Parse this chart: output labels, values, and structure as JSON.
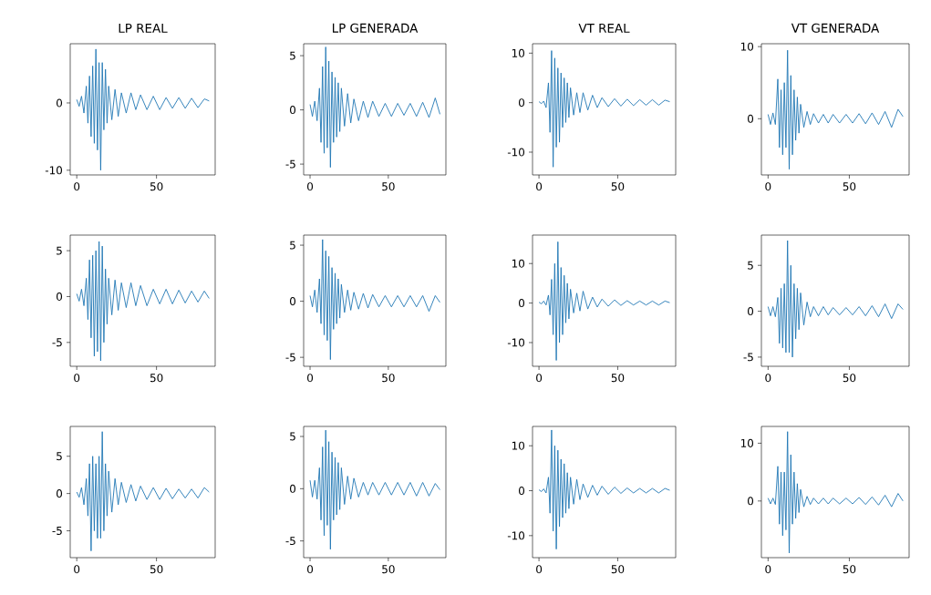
{
  "chart_data": [
    {
      "type": "line",
      "title": "LP REAL",
      "color": "#1f77b4",
      "xlim": [
        -4.1,
        86.8
      ],
      "ylim": [
        -10.7,
        8.8
      ],
      "xticks": [
        0,
        50
      ],
      "yticks": [
        -10,
        0
      ],
      "x": [
        0,
        1.5,
        3,
        4.5,
        6,
        7,
        8,
        9,
        10,
        11,
        12,
        13,
        14,
        15,
        16,
        17,
        18,
        19,
        20,
        22,
        24,
        26,
        28,
        31,
        34,
        37,
        40,
        44,
        48,
        52,
        56,
        60,
        64,
        68,
        72,
        76,
        80,
        83
      ],
      "values": [
        0.5,
        -0.5,
        1,
        -1.5,
        2.5,
        -3,
        4,
        -5,
        5.5,
        -6,
        8,
        -7,
        6,
        -10,
        6,
        -4,
        5,
        -3,
        2.5,
        -2.5,
        2,
        -2,
        1.5,
        -1.5,
        1.5,
        -1,
        1.2,
        -1,
        1,
        -1,
        0.8,
        -0.8,
        0.8,
        -0.8,
        0.7,
        -0.7,
        0.6,
        0.3
      ]
    },
    {
      "type": "line",
      "title": "LP GENERADA",
      "color": "#1f77b4",
      "xlim": [
        -4.1,
        86.8
      ],
      "ylim": [
        -6.0,
        6.1
      ],
      "xticks": [
        0,
        50
      ],
      "yticks": [
        -5,
        0,
        5
      ],
      "x": [
        0,
        1.5,
        3,
        4.5,
        6,
        7,
        8,
        9,
        10,
        11,
        12,
        13,
        14,
        15,
        16,
        17,
        18,
        19,
        20,
        22,
        24,
        26,
        28,
        31,
        34,
        37,
        40,
        44,
        48,
        52,
        56,
        60,
        64,
        68,
        72,
        76,
        80,
        83
      ],
      "values": [
        0.5,
        -0.6,
        0.8,
        -1,
        2,
        -3,
        4,
        -4,
        5.8,
        -3.5,
        4.5,
        -5.3,
        3.5,
        -3,
        3,
        -2.5,
        2.5,
        -2,
        2,
        -1.5,
        1.5,
        -1.2,
        1,
        -1,
        0.8,
        -0.7,
        0.8,
        -0.6,
        0.6,
        -0.6,
        0.6,
        -0.5,
        0.6,
        -0.6,
        0.7,
        -0.7,
        1.1,
        -0.4
      ]
    },
    {
      "type": "line",
      "title": "VT REAL",
      "color": "#1f77b4",
      "xlim": [
        -4.1,
        86.8
      ],
      "ylim": [
        -14.6,
        11.9
      ],
      "xticks": [
        0,
        50
      ],
      "yticks": [
        -10,
        0,
        10
      ],
      "x": [
        0,
        1.5,
        3,
        4.5,
        6,
        7,
        8,
        9,
        10,
        11,
        12,
        13,
        14,
        15,
        16,
        17,
        18,
        19,
        20,
        22,
        24,
        26,
        28,
        31,
        34,
        37,
        40,
        44,
        48,
        52,
        56,
        60,
        64,
        68,
        72,
        76,
        80,
        83
      ],
      "values": [
        0.2,
        -0.2,
        0.3,
        -1,
        4,
        -6,
        10.5,
        -13,
        9,
        -9,
        7,
        -8,
        6,
        -5,
        5,
        -4,
        4,
        -3,
        3,
        -2.5,
        2,
        -2,
        2,
        -1.5,
        1.5,
        -1,
        1,
        -0.8,
        0.8,
        -0.7,
        0.7,
        -0.6,
        0.6,
        -0.5,
        0.6,
        -0.5,
        0.5,
        0.2
      ]
    },
    {
      "type": "line",
      "title": "VT GENERADA",
      "color": "#1f77b4",
      "xlim": [
        -4.1,
        86.8
      ],
      "ylim": [
        -7.8,
        10.4
      ],
      "xticks": [
        0,
        50
      ],
      "yticks": [
        0,
        10
      ],
      "x": [
        0,
        1.5,
        3,
        4.5,
        6,
        7,
        8,
        9,
        10,
        11,
        12,
        13,
        14,
        15,
        16,
        17,
        18,
        19,
        20,
        22,
        24,
        26,
        28,
        31,
        34,
        37,
        40,
        44,
        48,
        52,
        56,
        60,
        64,
        68,
        72,
        76,
        80,
        83
      ],
      "values": [
        0.6,
        -0.8,
        0.8,
        -0.8,
        5.5,
        -4,
        4,
        -5,
        5,
        -4,
        9.5,
        -7,
        6,
        -5,
        4,
        -3,
        3,
        -2,
        2,
        -1.2,
        1,
        -0.8,
        0.7,
        -0.6,
        0.6,
        -0.6,
        0.6,
        -0.6,
        0.6,
        -0.6,
        0.7,
        -0.7,
        0.8,
        -0.8,
        1,
        -1.2,
        1.3,
        0.3
      ]
    },
    {
      "type": "line",
      "color": "#1f77b4",
      "xlim": [
        -4.1,
        86.8
      ],
      "ylim": [
        -7.6,
        6.7
      ],
      "xticks": [
        0,
        50
      ],
      "yticks": [
        -5,
        0,
        5
      ],
      "x": [
        0,
        1.5,
        3,
        4.5,
        6,
        7,
        8,
        9,
        10,
        11,
        12,
        13,
        14,
        15,
        16,
        17,
        18,
        19,
        20,
        22,
        24,
        26,
        28,
        31,
        34,
        37,
        40,
        44,
        48,
        52,
        56,
        60,
        64,
        68,
        72,
        76,
        80,
        83
      ],
      "values": [
        0.3,
        -0.5,
        0.8,
        -1,
        2,
        -2.5,
        4,
        -4.5,
        4.5,
        -6.5,
        5,
        -6,
        6,
        -7,
        5.5,
        -5,
        3,
        -3,
        2,
        -2,
        1.8,
        -1.5,
        1.5,
        -1.2,
        1.5,
        -1,
        1.2,
        -1,
        0.8,
        -0.8,
        0.8,
        -0.8,
        0.7,
        -0.7,
        0.6,
        -0.6,
        0.6,
        -0.2
      ]
    },
    {
      "type": "line",
      "color": "#1f77b4",
      "xlim": [
        -4.1,
        86.8
      ],
      "ylim": [
        -5.8,
        5.9
      ],
      "xticks": [
        0,
        50
      ],
      "yticks": [
        -5,
        0,
        5
      ],
      "x": [
        0,
        1.5,
        3,
        4.5,
        6,
        7,
        8,
        9,
        10,
        11,
        12,
        13,
        14,
        15,
        16,
        17,
        18,
        19,
        20,
        22,
        24,
        26,
        28,
        31,
        34,
        37,
        40,
        44,
        48,
        52,
        56,
        60,
        64,
        68,
        72,
        76,
        80,
        83
      ],
      "values": [
        0.5,
        -0.5,
        1,
        -1,
        2,
        -2,
        5.5,
        -3,
        4.5,
        -3.5,
        4,
        -5.2,
        3,
        -2.5,
        2.5,
        -2,
        2,
        -1.5,
        1.5,
        -1,
        1,
        -0.8,
        0.8,
        -0.7,
        0.7,
        -0.6,
        0.6,
        -0.5,
        0.5,
        -0.5,
        0.5,
        -0.5,
        0.5,
        -0.5,
        0.5,
        -0.9,
        0.5,
        -0.1
      ]
    },
    {
      "type": "line",
      "color": "#1f77b4",
      "xlim": [
        -4.1,
        86.8
      ],
      "ylim": [
        -16.0,
        17.2
      ],
      "xticks": [
        0,
        50
      ],
      "yticks": [
        -10,
        0,
        10
      ],
      "x": [
        0,
        1.5,
        3,
        4.5,
        6,
        7,
        8,
        9,
        10,
        11,
        12,
        13,
        14,
        15,
        16,
        17,
        18,
        19,
        20,
        22,
        24,
        26,
        28,
        31,
        34,
        37,
        40,
        44,
        48,
        52,
        56,
        60,
        64,
        68,
        72,
        76,
        80,
        83
      ],
      "values": [
        0.2,
        -0.2,
        0.5,
        -0.5,
        2,
        -3,
        6,
        -8,
        10,
        -14.5,
        15.5,
        -10,
        9,
        -8,
        7,
        -5,
        5,
        -4,
        3.5,
        -2.5,
        2.5,
        -2,
        3,
        -1.5,
        1.5,
        -1,
        1,
        -0.8,
        0.8,
        -0.6,
        0.6,
        -0.5,
        0.5,
        -0.5,
        0.5,
        -0.5,
        0.5,
        0.1
      ]
    },
    {
      "type": "line",
      "color": "#1f77b4",
      "xlim": [
        -4.1,
        86.8
      ],
      "ylim": [
        -6.0,
        8.3
      ],
      "xticks": [
        0,
        50
      ],
      "yticks": [
        -5,
        0,
        5
      ],
      "x": [
        0,
        1.5,
        3,
        4.5,
        6,
        7,
        8,
        9,
        10,
        11,
        12,
        13,
        14,
        15,
        16,
        17,
        18,
        19,
        20,
        22,
        24,
        26,
        28,
        31,
        34,
        37,
        40,
        44,
        48,
        52,
        56,
        60,
        64,
        68,
        72,
        76,
        80,
        83
      ],
      "values": [
        0.5,
        -0.5,
        0.5,
        -0.6,
        1.5,
        -3.5,
        2.5,
        -4,
        3,
        -4.5,
        7.7,
        -4.5,
        5,
        -5,
        3,
        -3,
        2.5,
        -2,
        2,
        -1.5,
        1,
        -0.6,
        0.5,
        -0.5,
        0.5,
        -0.4,
        0.4,
        -0.4,
        0.4,
        -0.4,
        0.5,
        -0.5,
        0.6,
        -0.6,
        0.8,
        -0.8,
        0.8,
        0.2
      ]
    },
    {
      "type": "line",
      "color": "#1f77b4",
      "xlim": [
        -4.1,
        86.8
      ],
      "ylim": [
        -8.6,
        9.0
      ],
      "xticks": [
        0,
        50
      ],
      "yticks": [
        -5,
        0,
        5
      ],
      "x": [
        0,
        1.5,
        3,
        4.5,
        6,
        7,
        8,
        9,
        10,
        11,
        12,
        13,
        14,
        15,
        16,
        17,
        18,
        19,
        20,
        22,
        24,
        26,
        28,
        31,
        34,
        37,
        40,
        44,
        48,
        52,
        56,
        60,
        64,
        68,
        72,
        76,
        80,
        83
      ],
      "values": [
        0.2,
        -0.5,
        0.8,
        -1.5,
        2,
        -3,
        4,
        -7.7,
        5,
        -5,
        4,
        -6,
        5,
        -6,
        8.3,
        -5,
        4,
        -3,
        3,
        -2.5,
        2,
        -1.5,
        1.5,
        -1.2,
        1.2,
        -1,
        1,
        -0.8,
        0.8,
        -0.8,
        0.7,
        -0.7,
        0.6,
        -0.6,
        0.6,
        -0.6,
        0.8,
        0.2
      ]
    },
    {
      "type": "line",
      "color": "#1f77b4",
      "xlim": [
        -4.1,
        86.8
      ],
      "ylim": [
        -6.6,
        5.96
      ],
      "xticks": [
        0,
        50
      ],
      "yticks": [
        -5,
        0,
        5
      ],
      "x": [
        0,
        1.5,
        3,
        4.5,
        6,
        7,
        8,
        9,
        10,
        11,
        12,
        13,
        14,
        15,
        16,
        17,
        18,
        19,
        20,
        22,
        24,
        26,
        28,
        31,
        34,
        37,
        40,
        44,
        48,
        52,
        56,
        60,
        64,
        68,
        72,
        76,
        80,
        83
      ],
      "values": [
        0.8,
        -0.8,
        0.8,
        -1,
        2,
        -3,
        4,
        -4.5,
        5.6,
        -3.5,
        4.5,
        -5.8,
        3.5,
        -3,
        3,
        -2.5,
        2.5,
        -2,
        2,
        -1.5,
        1.2,
        -1,
        1,
        -0.8,
        0.6,
        -0.6,
        0.6,
        -0.6,
        0.6,
        -0.6,
        0.6,
        -0.6,
        0.6,
        -0.7,
        0.6,
        -0.7,
        0.5,
        -0.1
      ]
    },
    {
      "type": "line",
      "color": "#1f77b4",
      "xlim": [
        -4.1,
        86.8
      ],
      "ylim": [
        -14.9,
        14.3
      ],
      "xticks": [
        0,
        50
      ],
      "yticks": [
        -10,
        0,
        10
      ],
      "x": [
        0,
        1.5,
        3,
        4.5,
        6,
        7,
        8,
        9,
        10,
        11,
        12,
        13,
        14,
        15,
        16,
        17,
        18,
        19,
        20,
        22,
        24,
        26,
        28,
        31,
        34,
        37,
        40,
        44,
        48,
        52,
        56,
        60,
        64,
        68,
        72,
        76,
        80,
        83
      ],
      "values": [
        0.2,
        -0.2,
        0.4,
        -0.5,
        3,
        -5,
        13.5,
        -9,
        10,
        -13,
        9,
        -8,
        7,
        -6,
        6,
        -5,
        4,
        -4,
        3,
        -3,
        2.5,
        -2,
        1.5,
        -1.5,
        1.2,
        -1,
        1,
        -0.8,
        0.8,
        -0.6,
        0.6,
        -0.5,
        0.5,
        -0.5,
        0.5,
        -0.5,
        0.5,
        0.1
      ]
    },
    {
      "type": "line",
      "color": "#1f77b4",
      "xlim": [
        -4.1,
        86.8
      ],
      "ylim": [
        -9.8,
        12.9
      ],
      "xticks": [
        0,
        50
      ],
      "yticks": [
        0,
        10
      ],
      "x": [
        0,
        1.5,
        3,
        4.5,
        6,
        7,
        8,
        9,
        10,
        11,
        12,
        13,
        14,
        15,
        16,
        17,
        18,
        19,
        20,
        22,
        24,
        26,
        28,
        31,
        34,
        37,
        40,
        44,
        48,
        52,
        56,
        60,
        64,
        68,
        72,
        76,
        80,
        83
      ],
      "values": [
        0.5,
        -0.5,
        0.5,
        -0.6,
        6,
        -4,
        5,
        -6,
        5,
        -5,
        12,
        -9,
        8,
        -4,
        5,
        -3,
        3,
        -2,
        2,
        -1,
        0.8,
        -0.6,
        0.5,
        -0.5,
        0.5,
        -0.5,
        0.5,
        -0.5,
        0.5,
        -0.5,
        0.6,
        -0.6,
        0.7,
        -0.7,
        1,
        -1,
        1.3,
        0
      ]
    }
  ]
}
